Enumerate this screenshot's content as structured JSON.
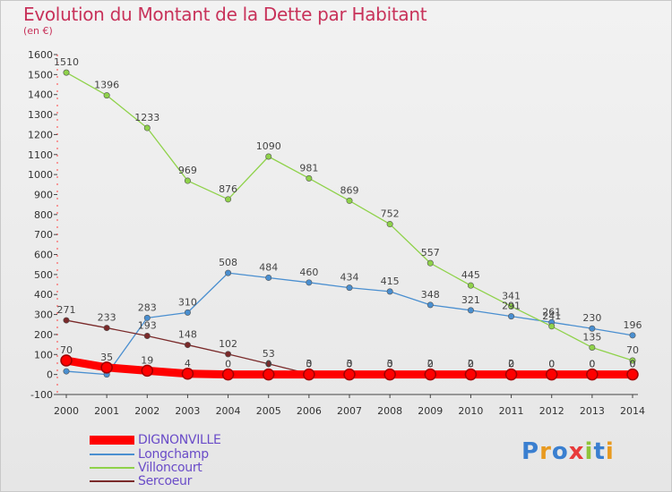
{
  "header": {
    "title": "Evolution du Montant de la Dette par Habitant",
    "subtitle": "(en €)"
  },
  "brand": {
    "text": "Proxiti"
  },
  "chart_data": {
    "type": "line",
    "title": "Evolution du Montant de la Dette par Habitant",
    "ylabel": "(en €)",
    "xlabel": "",
    "x": [
      2000,
      2001,
      2002,
      2003,
      2004,
      2005,
      2006,
      2007,
      2008,
      2009,
      2010,
      2011,
      2012,
      2013,
      2014
    ],
    "ylim": [
      -100,
      1600
    ],
    "yticks": [
      -100,
      0,
      100,
      200,
      300,
      400,
      500,
      600,
      700,
      800,
      900,
      1000,
      1100,
      1200,
      1300,
      1400,
      1500,
      1600
    ],
    "grid": false,
    "legend": "bottom-left",
    "series": [
      {
        "name": "DIGNONVILLE",
        "color": "#ff0000",
        "values": [
          70,
          35,
          19,
          4,
          0,
          0,
          0,
          0,
          0,
          0,
          0,
          0,
          0,
          0,
          0
        ],
        "labels": [
          "70",
          "35",
          "19",
          "4",
          "0",
          "0",
          "0",
          "0",
          "0",
          "0",
          "0",
          "0",
          "0",
          "0",
          "0"
        ]
      },
      {
        "name": "Longchamp",
        "color": "#4a8fd0",
        "values": [
          16,
          0,
          283,
          310,
          508,
          484,
          460,
          434,
          415,
          348,
          321,
          291,
          261,
          230,
          196
        ],
        "labels": [
          "",
          "",
          "283",
          "310",
          "508",
          "484",
          "460",
          "434",
          "415",
          "348",
          "321",
          "291",
          "261",
          "230",
          "196"
        ]
      },
      {
        "name": "Villoncourt",
        "color": "#8fd24a",
        "values": [
          1510,
          1396,
          1233,
          969,
          876,
          1090,
          981,
          869,
          752,
          557,
          445,
          341,
          241,
          135,
          70
        ],
        "labels": [
          "1510",
          "1396",
          "1233",
          "969",
          "876",
          "1090",
          "981",
          "869",
          "752",
          "557",
          "445",
          "341",
          "241",
          "135",
          "70"
        ]
      },
      {
        "name": "Sercoeur",
        "color": "#7a2a2a",
        "values": [
          271,
          233,
          193,
          148,
          102,
          53,
          3,
          3,
          3,
          2,
          2,
          2,
          0,
          0,
          0
        ],
        "labels": [
          "271",
          "233",
          "193",
          "148",
          "102",
          "53",
          "3",
          "3",
          "3",
          "2",
          "2",
          "2",
          "0",
          "0",
          "0"
        ]
      }
    ]
  }
}
